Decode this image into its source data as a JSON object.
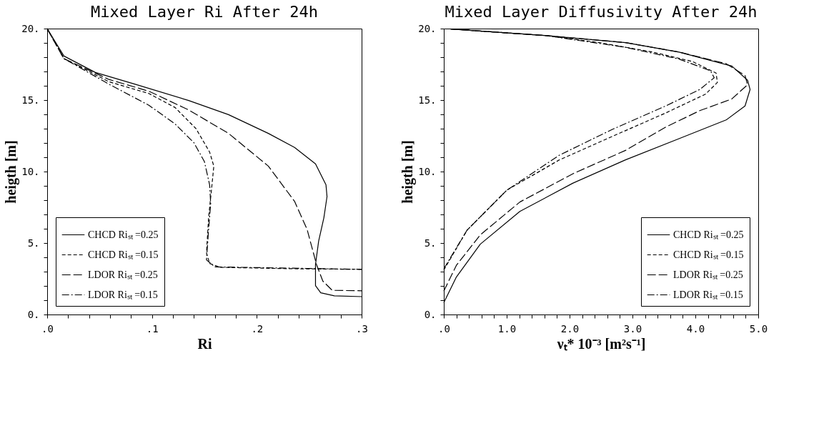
{
  "chart_data": [
    {
      "type": "line",
      "title": "Mixed Layer Ri After 24h",
      "xlabel": "Ri",
      "ylabel": "heigth [m]",
      "xlim": [
        0,
        0.3
      ],
      "ylim": [
        0,
        20
      ],
      "legend": "bottom left",
      "xticks": [
        {
          "value": 0,
          "label": ".0"
        },
        {
          "value": 0.02,
          "label": null
        },
        {
          "value": 0.04,
          "label": null
        },
        {
          "value": 0.06,
          "label": null
        },
        {
          "value": 0.08,
          "label": null
        },
        {
          "value": 0.1,
          "label": ".1"
        },
        {
          "value": 0.12,
          "label": null
        },
        {
          "value": 0.14,
          "label": null
        },
        {
          "value": 0.16,
          "label": null
        },
        {
          "value": 0.18,
          "label": null
        },
        {
          "value": 0.2,
          "label": ".2"
        },
        {
          "value": 0.22,
          "label": null
        },
        {
          "value": 0.24,
          "label": null
        },
        {
          "value": 0.26,
          "label": null
        },
        {
          "value": 0.28,
          "label": null
        },
        {
          "value": 0.3,
          "label": ".3"
        }
      ],
      "yticks": [
        {
          "value": 0,
          "label": "0."
        },
        {
          "value": 1,
          "label": null
        },
        {
          "value": 2,
          "label": null
        },
        {
          "value": 3,
          "label": null
        },
        {
          "value": 4,
          "label": null
        },
        {
          "value": 5,
          "label": "5."
        },
        {
          "value": 6,
          "label": null
        },
        {
          "value": 7,
          "label": null
        },
        {
          "value": 8,
          "label": null
        },
        {
          "value": 9,
          "label": null
        },
        {
          "value": 10,
          "label": "10."
        },
        {
          "value": 11,
          "label": null
        },
        {
          "value": 12,
          "label": null
        },
        {
          "value": 13,
          "label": null
        },
        {
          "value": 14,
          "label": null
        },
        {
          "value": 15,
          "label": "15."
        },
        {
          "value": 16,
          "label": null
        },
        {
          "value": 17,
          "label": null
        },
        {
          "value": 18,
          "label": null
        },
        {
          "value": 19,
          "label": null
        },
        {
          "value": 20,
          "label": "20."
        }
      ],
      "series": [
        {
          "name": "CHCD Riₛₜ =0.25",
          "color": "#000000",
          "line_style": "solid",
          "x": [
            0,
            0.016,
            0.046,
            0.084,
            0.135,
            0.173,
            0.211,
            0.236,
            0.256,
            0.266,
            0.267,
            0.264,
            0.259,
            0.256,
            0.256,
            0.261,
            0.274,
            0.3
          ],
          "values": [
            20,
            18.08,
            16.93,
            16.11,
            14.97,
            13.98,
            12.67,
            11.69,
            10.54,
            9.07,
            8.25,
            6.77,
            5.13,
            3.49,
            2.02,
            1.52,
            1.31,
            1.25
          ]
        },
        {
          "name": "CHCD Riₛₜ =0.15",
          "color": "#000000",
          "line_style": "dashed",
          "x": [
            0,
            0.016,
            0.059,
            0.097,
            0.122,
            0.142,
            0.155,
            0.159,
            0.157,
            0.154,
            0.152,
            0.155,
            0.165,
            0.236,
            0.3
          ],
          "values": [
            20,
            17.9,
            16.28,
            15.46,
            14.48,
            13.0,
            11.36,
            10.38,
            8.9,
            6.77,
            4.31,
            3.57,
            3.3,
            3.2,
            3.16
          ]
        },
        {
          "name": "LDOR Riₛₜ =0.25",
          "color": "#000000",
          "line_style": "longdash",
          "x": [
            0,
            0.016,
            0.059,
            0.097,
            0.135,
            0.173,
            0.211,
            0.236,
            0.248,
            0.257,
            0.263,
            0.272,
            0.3
          ],
          "values": [
            20,
            17.9,
            16.44,
            15.62,
            14.31,
            12.67,
            10.38,
            7.92,
            5.95,
            3.49,
            2.34,
            1.69,
            1.66
          ]
        },
        {
          "name": "LDOR Riₛₜ =0.15",
          "color": "#000000",
          "line_style": "dashdot",
          "x": [
            0,
            0.016,
            0.059,
            0.097,
            0.122,
            0.14,
            0.15,
            0.155,
            0.156,
            0.154,
            0.152,
            0.16,
            0.3
          ],
          "values": [
            20,
            17.9,
            16.11,
            14.64,
            13.33,
            12.02,
            10.7,
            9.07,
            7.75,
            5.95,
            3.82,
            3.33,
            3.16
          ]
        }
      ]
    },
    {
      "type": "line",
      "title": "Mixed Layer Diffusivity After 24h",
      "xlabel": "νₜ* 10⁻³ [m²s⁻¹]",
      "ylabel": "heigth [m]",
      "xlim": [
        0,
        5
      ],
      "ylim": [
        0,
        20
      ],
      "legend": "bottom right",
      "xticks": [
        {
          "value": 0,
          "label": ".0"
        },
        {
          "value": 0.2,
          "label": null
        },
        {
          "value": 0.4,
          "label": null
        },
        {
          "value": 0.6,
          "label": null
        },
        {
          "value": 0.8,
          "label": null
        },
        {
          "value": 1,
          "label": "1.0"
        },
        {
          "value": 1.2,
          "label": null
        },
        {
          "value": 1.4,
          "label": null
        },
        {
          "value": 1.6,
          "label": null
        },
        {
          "value": 1.8,
          "label": null
        },
        {
          "value": 2,
          "label": "2.0"
        },
        {
          "value": 2.2,
          "label": null
        },
        {
          "value": 2.4,
          "label": null
        },
        {
          "value": 2.6,
          "label": null
        },
        {
          "value": 2.8,
          "label": null
        },
        {
          "value": 3,
          "label": "3.0"
        },
        {
          "value": 3.2,
          "label": null
        },
        {
          "value": 3.4,
          "label": null
        },
        {
          "value": 3.6,
          "label": null
        },
        {
          "value": 3.8,
          "label": null
        },
        {
          "value": 4,
          "label": "4.0"
        },
        {
          "value": 4.2,
          "label": null
        },
        {
          "value": 4.4,
          "label": null
        },
        {
          "value": 4.6,
          "label": null
        },
        {
          "value": 4.8,
          "label": null
        },
        {
          "value": 5,
          "label": "5.0"
        }
      ],
      "yticks": [
        {
          "value": 0,
          "label": "0."
        },
        {
          "value": 1,
          "label": null
        },
        {
          "value": 2,
          "label": null
        },
        {
          "value": 3,
          "label": null
        },
        {
          "value": 4,
          "label": null
        },
        {
          "value": 5,
          "label": "5."
        },
        {
          "value": 6,
          "label": null
        },
        {
          "value": 7,
          "label": null
        },
        {
          "value": 8,
          "label": null
        },
        {
          "value": 9,
          "label": null
        },
        {
          "value": 10,
          "label": "10."
        },
        {
          "value": 11,
          "label": null
        },
        {
          "value": 12,
          "label": null
        },
        {
          "value": 13,
          "label": null
        },
        {
          "value": 14,
          "label": null
        },
        {
          "value": 15,
          "label": "15."
        },
        {
          "value": 16,
          "label": null
        },
        {
          "value": 17,
          "label": null
        },
        {
          "value": 18,
          "label": null
        },
        {
          "value": 19,
          "label": null
        },
        {
          "value": 20,
          "label": "20."
        }
      ],
      "series": [
        {
          "name": "CHCD Riₛₜ =0.25",
          "color": "#000000",
          "line_style": "solid",
          "x": [
            0,
            0.2,
            0.58,
            1.21,
            2.05,
            2.89,
            3.74,
            4.49,
            4.79,
            4.87,
            4.83,
            4.58,
            3.74,
            2.89,
            1.63,
            0.11
          ],
          "values": [
            0.82,
            2.62,
            4.92,
            7.21,
            9.18,
            10.82,
            12.3,
            13.61,
            14.59,
            15.74,
            16.39,
            17.38,
            18.36,
            19.02,
            19.51,
            19.97
          ]
        },
        {
          "name": "CHCD Riₛₜ =0.15",
          "color": "#000000",
          "line_style": "dashed",
          "x": [
            0,
            0.37,
            1.0,
            1.84,
            2.68,
            3.53,
            4.16,
            4.35,
            4.33,
            3.95,
            3.32,
            2.47,
            1.63,
            0.11
          ],
          "values": [
            3.11,
            5.9,
            8.69,
            10.82,
            12.46,
            14.1,
            15.41,
            16.23,
            16.89,
            17.7,
            18.36,
            19.02,
            19.51,
            19.97
          ]
        },
        {
          "name": "LDOR Riₛₜ =0.25",
          "color": "#000000",
          "line_style": "longdash",
          "x": [
            0,
            0.2,
            0.58,
            1.21,
            2.05,
            2.89,
            3.53,
            4.07,
            4.58,
            4.83,
            4.79,
            4.49,
            3.74,
            2.89,
            1.63,
            0.11
          ],
          "values": [
            1.64,
            3.44,
            5.57,
            7.87,
            9.84,
            11.48,
            13.11,
            14.26,
            15.08,
            16.07,
            16.72,
            17.54,
            18.36,
            19.02,
            19.51,
            19.97
          ]
        },
        {
          "name": "LDOR Riₛₜ =0.15",
          "color": "#000000",
          "line_style": "dashdot",
          "x": [
            0,
            0.37,
            1.0,
            1.84,
            2.68,
            3.53,
            4.07,
            4.3,
            4.24,
            3.74,
            2.89,
            1.63,
            0.11
          ],
          "values": [
            3.2,
            5.9,
            8.69,
            11.15,
            12.95,
            14.59,
            15.74,
            16.56,
            17.05,
            17.87,
            18.69,
            19.51,
            19.97
          ]
        }
      ]
    }
  ]
}
